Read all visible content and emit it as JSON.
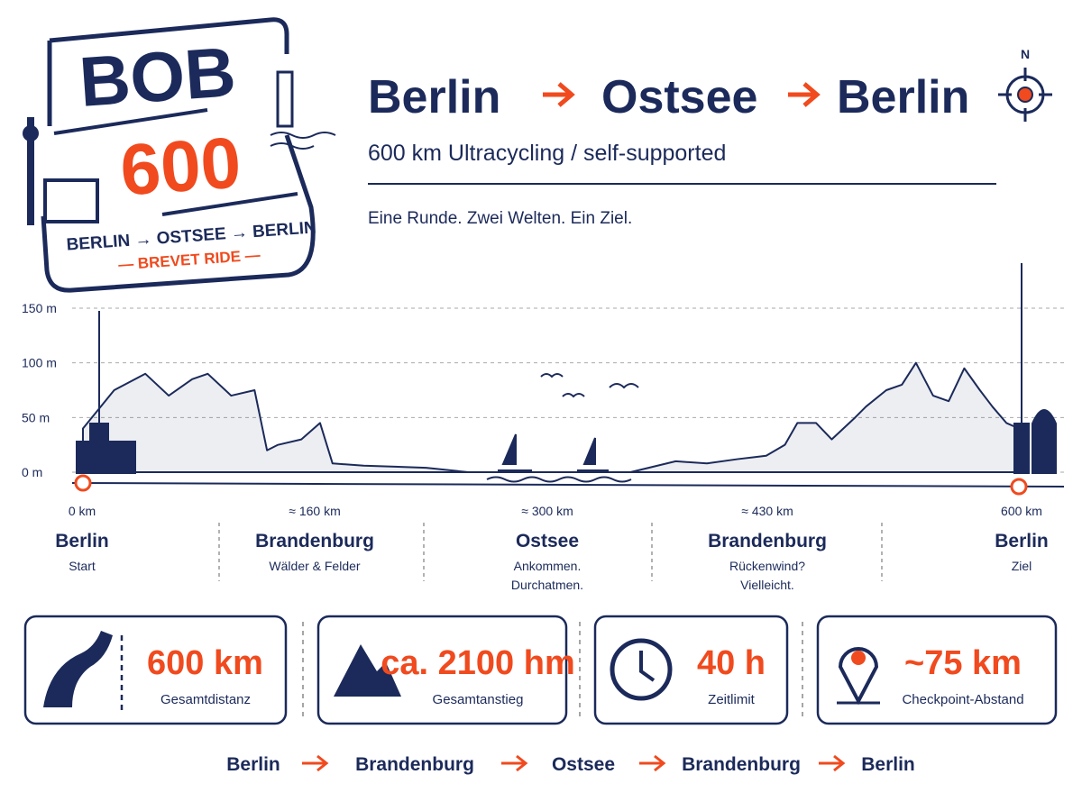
{
  "logo": {
    "title": "BOB",
    "number": "600",
    "route": "BERLIN → OSTSEE → BERLIN",
    "tag": "— BREVET RIDE —"
  },
  "header": {
    "stops": [
      "Berlin",
      "Ostsee",
      "Berlin"
    ],
    "compass": "N",
    "subtitle": "600 km Ultracycling / self-supported",
    "tagline": "Eine Runde. Zwei Welten. Ein Ziel."
  },
  "chart_data": {
    "type": "area",
    "color": "#1b2a5a",
    "x": [
      0,
      20,
      40,
      55,
      70,
      80,
      95,
      110,
      118,
      125,
      140,
      152,
      160,
      180,
      200,
      220,
      247,
      270,
      300,
      330,
      351,
      380,
      400,
      420,
      438,
      450,
      458,
      470,
      480,
      495,
      502,
      515,
      525,
      534,
      545,
      555,
      565,
      575,
      583,
      592,
      600
    ],
    "values": [
      40,
      75,
      90,
      70,
      85,
      90,
      70,
      75,
      20,
      25,
      30,
      45,
      8,
      6,
      5,
      4,
      0,
      0,
      0,
      0,
      0,
      10,
      8,
      12,
      15,
      25,
      45,
      45,
      30,
      50,
      60,
      75,
      80,
      100,
      70,
      65,
      95,
      75,
      60,
      45,
      40
    ],
    "xlim": [
      0,
      600
    ],
    "ylim": [
      0,
      150
    ],
    "yticks": [
      {
        "value": 0,
        "label": "0 m"
      },
      {
        "value": 50,
        "label": "50 m"
      },
      {
        "value": 100,
        "label": "100 m"
      },
      {
        "value": 150,
        "label": "150 m"
      }
    ],
    "grid": true
  },
  "stops": [
    {
      "km": "0 km",
      "name": "Berlin",
      "note": [
        "Start"
      ]
    },
    {
      "km": "≈ 160 km",
      "name": "Brandenburg",
      "note": [
        "Wälder & Felder"
      ]
    },
    {
      "km": "≈ 300 km",
      "name": "Ostsee",
      "note": [
        "Ankommen.",
        "Durchatmen."
      ]
    },
    {
      "km": "≈ 430 km",
      "name": "Brandenburg",
      "note": [
        "Rückenwind?",
        "Vielleicht."
      ]
    },
    {
      "km": "600 km",
      "name": "Berlin",
      "note": [
        "Ziel"
      ]
    }
  ],
  "stats": [
    {
      "value": "600 km",
      "label": "Gesamtdistanz"
    },
    {
      "value": "ca. 2100 hm",
      "label": "Gesamtanstieg"
    },
    {
      "value": "40 h",
      "label": "Zeitlimit"
    },
    {
      "value": "~75 km",
      "label": "Checkpoint-Abstand"
    }
  ],
  "route": [
    "Berlin",
    "Brandenburg",
    "Ostsee",
    "Brandenburg",
    "Berlin"
  ]
}
